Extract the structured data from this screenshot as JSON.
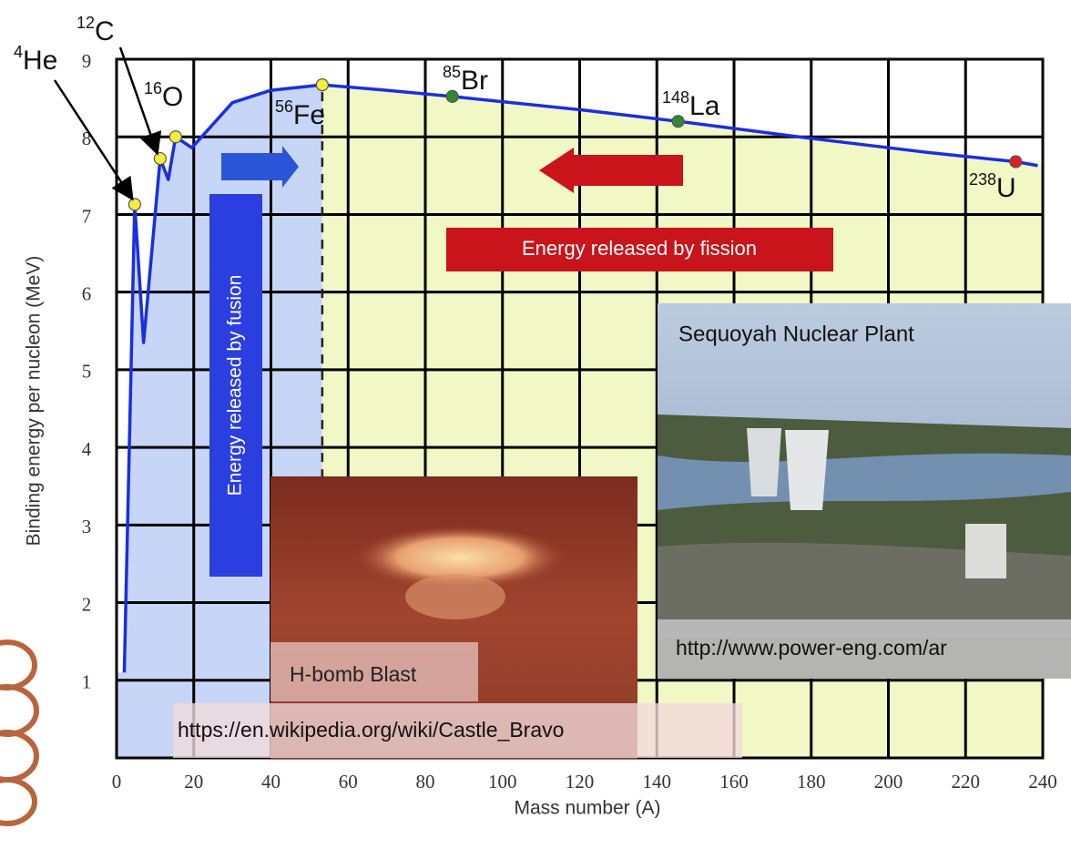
{
  "chart_data": {
    "type": "line",
    "x_label": "Mass number (A)",
    "y_label": "Binding energy per nucleon (MeV)",
    "xlim": [
      0,
      240
    ],
    "ylim": [
      0,
      9
    ],
    "xticks": [
      0,
      20,
      40,
      60,
      80,
      100,
      120,
      140,
      160,
      180,
      200,
      220,
      240
    ],
    "yticks": [
      1,
      2,
      3,
      4,
      5,
      6,
      7,
      8,
      9
    ],
    "grid": true,
    "series": [
      {
        "color": "#1a2fe0",
        "x": [
          2,
          4.7,
          7,
          11.3,
          13.4,
          15.3,
          19.5,
          30,
          40,
          53.3,
          70,
          87,
          120,
          145.5,
          180,
          210,
          233,
          238.7
        ],
        "values": [
          1.1,
          7.13,
          5.35,
          7.72,
          7.45,
          8.0,
          7.86,
          8.44,
          8.6,
          8.67,
          8.6,
          8.52,
          8.35,
          8.2,
          7.98,
          7.8,
          7.68,
          7.63
        ]
      }
    ],
    "nuclides": [
      {
        "mass": "4",
        "symbol": "He",
        "x": 4.7,
        "y": 7.13,
        "color": "#f2ef3a"
      },
      {
        "mass": "12",
        "symbol": "C",
        "x": 11.3,
        "y": 7.72,
        "color": "#f2ef3a"
      },
      {
        "mass": "16",
        "symbol": "O",
        "x": 15.3,
        "y": 8.0,
        "color": "#f2ef3a"
      },
      {
        "mass": "56",
        "symbol": "Fe",
        "x": 53.3,
        "y": 8.67,
        "color": "#f2ef3a"
      },
      {
        "mass": "85",
        "symbol": "Br",
        "x": 87,
        "y": 8.52,
        "color": "#2f8a2f"
      },
      {
        "mass": "148",
        "symbol": "La",
        "x": 145.5,
        "y": 8.2,
        "color": "#2f8a2f"
      },
      {
        "mass": "238",
        "symbol": "U",
        "x": 233,
        "y": 7.68,
        "color": "#e02020"
      }
    ],
    "fusion_label": "Energy released by fusion",
    "fission_label": "Energy released by fission"
  },
  "photos": [
    {
      "caption": "H-bomb Blast",
      "source": "https://en.wikipedia.org/wiki/Castle_Bravo"
    },
    {
      "caption": "Sequoyah Nuclear Plant",
      "source": "http://www.power-eng.com/ar"
    }
  ]
}
